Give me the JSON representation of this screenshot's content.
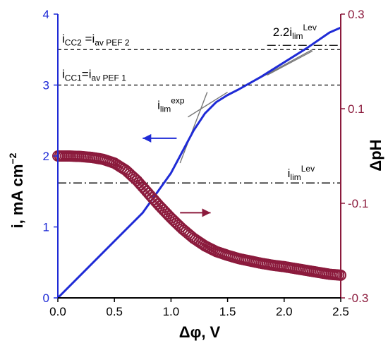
{
  "chart_data": {
    "type": "line",
    "xlabel": "Δφ, V",
    "x_ticks": [
      "0.0",
      "0.5",
      "1.0",
      "1.5",
      "2.0",
      "2.5"
    ],
    "xlim": [
      0,
      2.5
    ],
    "left_axis": {
      "label": "i, mA cm",
      "label_sup": "−2",
      "ticks": [
        "0",
        "1",
        "2",
        "3",
        "4"
      ],
      "ylim": [
        0,
        4
      ],
      "color": "#1f2bd6"
    },
    "right_axis": {
      "label": "ΔpH",
      "ticks": [
        "-0.3",
        "-0.1",
        "0.1",
        "0.3"
      ],
      "ylim": [
        -0.3,
        0.3
      ],
      "color": "#8b1a3c"
    },
    "series": [
      {
        "axis": "left",
        "color": "#1f2bd6",
        "style": "line",
        "x": [
          0,
          0.25,
          0.5,
          0.75,
          1.0,
          1.1,
          1.2,
          1.3,
          1.4,
          1.5,
          1.6,
          1.8,
          2.0,
          2.2,
          2.4,
          2.5
        ],
        "y": [
          0,
          0.4,
          0.8,
          1.2,
          1.76,
          2.06,
          2.36,
          2.6,
          2.76,
          2.86,
          2.94,
          3.12,
          3.32,
          3.52,
          3.74,
          3.81
        ]
      },
      {
        "axis": "right",
        "color": "#8b1a3c",
        "style": "markers",
        "x": [
          0,
          0.1,
          0.2,
          0.3,
          0.4,
          0.5,
          0.6,
          0.7,
          0.8,
          0.9,
          1.0,
          1.1,
          1.2,
          1.3,
          1.4,
          1.5,
          1.6,
          1.7,
          1.8,
          1.9,
          2.0,
          2.1,
          2.2,
          2.3,
          2.4,
          2.5
        ],
        "y": [
          0.0,
          0.0,
          -0.001,
          -0.003,
          -0.007,
          -0.015,
          -0.03,
          -0.052,
          -0.079,
          -0.106,
          -0.131,
          -0.154,
          -0.174,
          -0.19,
          -0.202,
          -0.21,
          -0.217,
          -0.222,
          -0.227,
          -0.231,
          -0.234,
          -0.238,
          -0.242,
          -0.246,
          -0.25,
          -0.252
        ]
      }
    ],
    "reference_lines": [
      {
        "axis": "left",
        "y": 3.5,
        "style": "dashed",
        "label_main": "i",
        "label_sub1": "CC2",
        "label_mid": " =i",
        "label_sub2": "av PEF 2"
      },
      {
        "axis": "left",
        "y": 3.0,
        "style": "dashed",
        "label_main": "i",
        "label_sub1": "CC1",
        "label_mid": "=i",
        "label_sub2": "av PEF 1"
      },
      {
        "axis": "left",
        "y": 1.62,
        "style": "dashdot",
        "label_main": "i",
        "label_sub1": "lim",
        "label_sup": "Lev"
      },
      {
        "axis": "left",
        "y": 3.56,
        "x_start": 1.85,
        "style": "dashdot",
        "label_main": "2.2i",
        "label_sub1": "lim",
        "label_sup": "Lev"
      }
    ],
    "tangent_lines": [
      {
        "x1": 1.08,
        "y1": 1.9,
        "x2": 1.32,
        "y2": 2.9
      },
      {
        "x1": 1.15,
        "y1": 2.55,
        "x2": 1.5,
        "y2": 2.9
      },
      {
        "x1": 1.5,
        "y1": 2.85,
        "x2": 2.25,
        "y2": 3.5
      },
      {
        "x1": 1.85,
        "y1": 3.14,
        "x2": 2.25,
        "y2": 3.48
      }
    ],
    "annotations": {
      "ilim_exp": {
        "main": "i",
        "sub": "lim",
        "sup": "exp"
      }
    },
    "arrows": [
      {
        "direction": "left",
        "color": "#1f2bd6"
      },
      {
        "direction": "right",
        "color": "#8b1a3c"
      }
    ],
    "grid": false
  }
}
